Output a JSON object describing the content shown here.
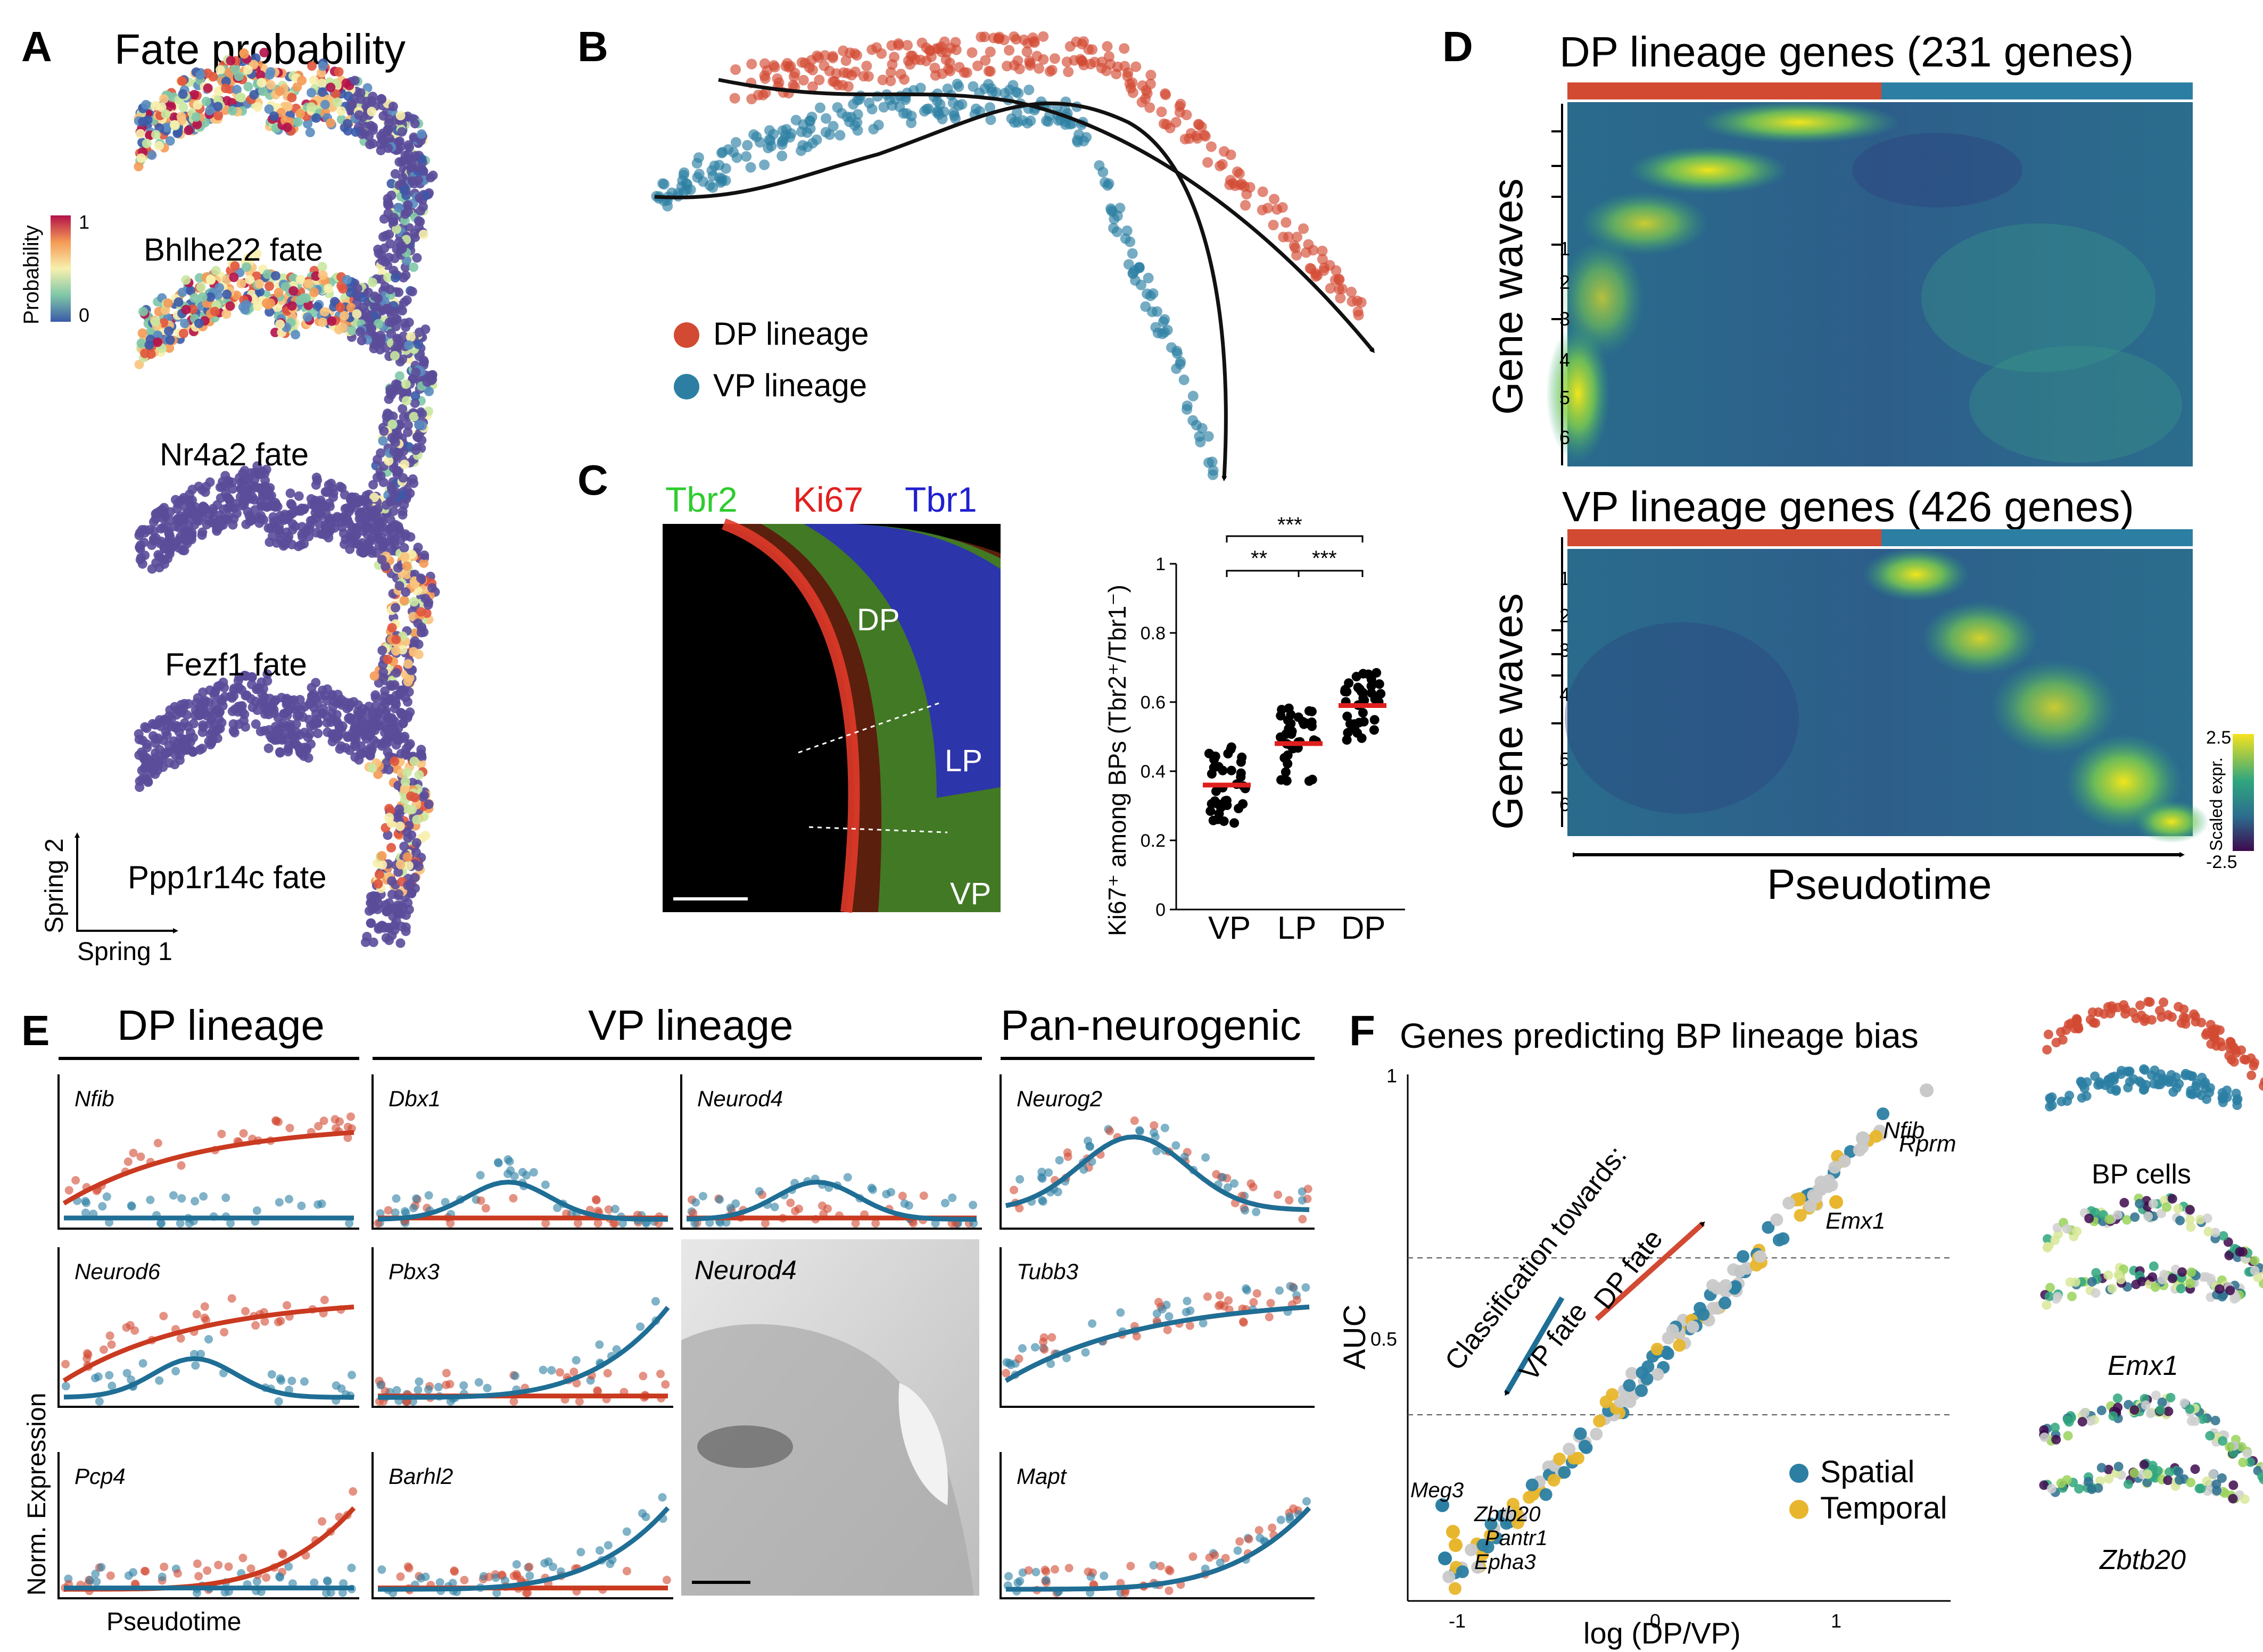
{
  "panels": {
    "A": "A",
    "B": "B",
    "C": "C",
    "D": "D",
    "E": "E",
    "F": "F"
  },
  "panelA": {
    "title": "Fate probability",
    "fates": [
      "Bhlhe22 fate",
      "Nr4a2 fate",
      "Fezf1 fate",
      "Ppp1r14c fate"
    ],
    "colorbar_title": "Probability",
    "colorbar_max": "1",
    "colorbar_min": "0",
    "axis_y": "Spring 2",
    "axis_x": "Spring 1"
  },
  "panelB": {
    "legend": [
      {
        "label": "DP lineage",
        "color": "#d24a32"
      },
      {
        "label": "VP lineage",
        "color": "#2c7fa3"
      }
    ]
  },
  "panelC": {
    "stain_tbr2": "Tbr2",
    "stain_ki67": "Ki67",
    "stain_tbr1": "Tbr1",
    "regions": [
      "DP",
      "LP",
      "VP"
    ],
    "sig_top": "***",
    "sig_left": "**",
    "sig_right": "***",
    "ylabel": "Ki67⁺ among  BPs (Tbr2⁺/Tbr1⁻)",
    "yticks": [
      "0",
      "0.2",
      "0.4",
      "0.6",
      "0.8",
      "1"
    ],
    "groups": [
      "VP",
      "LP",
      "DP"
    ],
    "medians": [
      0.36,
      0.48,
      0.59
    ]
  },
  "panelD": {
    "dp_title": "DP lineage genes (231 genes)",
    "vp_title": "VP lineage genes (426 genes)",
    "waves_label": "Gene waves",
    "wave_numbers": [
      "1",
      "2",
      "3",
      "4",
      "5",
      "6"
    ],
    "pseudotime": "Pseudotime",
    "colorbar_title": "Scaled expr.",
    "colorbar_max": "2.5",
    "colorbar_min": "-2.5"
  },
  "panelE": {
    "group_dp": "DP lineage",
    "group_vp": "VP lineage",
    "group_pan": "Pan-neurogenic",
    "genes": [
      "Nfib",
      "Neurod6",
      "Pcp4",
      "Dbx1",
      "Pbx3",
      "Barhl2",
      "Neurod4",
      "Neurog2",
      "Tubb3",
      "Mapt"
    ],
    "ish_label": "Neurod4",
    "ylabel": "Norm. Expression",
    "xlabel": "Pseudotime"
  },
  "panelF": {
    "title": "Genes predicting BP lineage bias",
    "ylabel": "AUC",
    "xlabel": "log (DP/VP)",
    "yticks": [
      "0.5",
      "1"
    ],
    "xticks": [
      "-1",
      "0",
      "1"
    ],
    "arrow_text1": "Classification towards:",
    "arrow_vp": "VP fate",
    "arrow_dp": "DP fate",
    "legend": [
      {
        "label": "Spatial",
        "color": "#2c7fa3"
      },
      {
        "label": "Temporal",
        "color": "#e8b62c"
      }
    ],
    "gene_labels": [
      "Nfib",
      "Rprm",
      "Emx1",
      "Meg3",
      "Zbtb20",
      "Pantr1",
      "Epha3"
    ],
    "side_labels": [
      "BP cells",
      "Emx1",
      "Zbtb20"
    ]
  },
  "chart_data": {
    "type": "scatter",
    "title": "Ki67+ among BPs (Tbr2+/Tbr1-)",
    "categories": [
      "VP",
      "LP",
      "DP"
    ],
    "medians": [
      0.36,
      0.48,
      0.59
    ],
    "ylim": [
      0,
      1
    ]
  }
}
